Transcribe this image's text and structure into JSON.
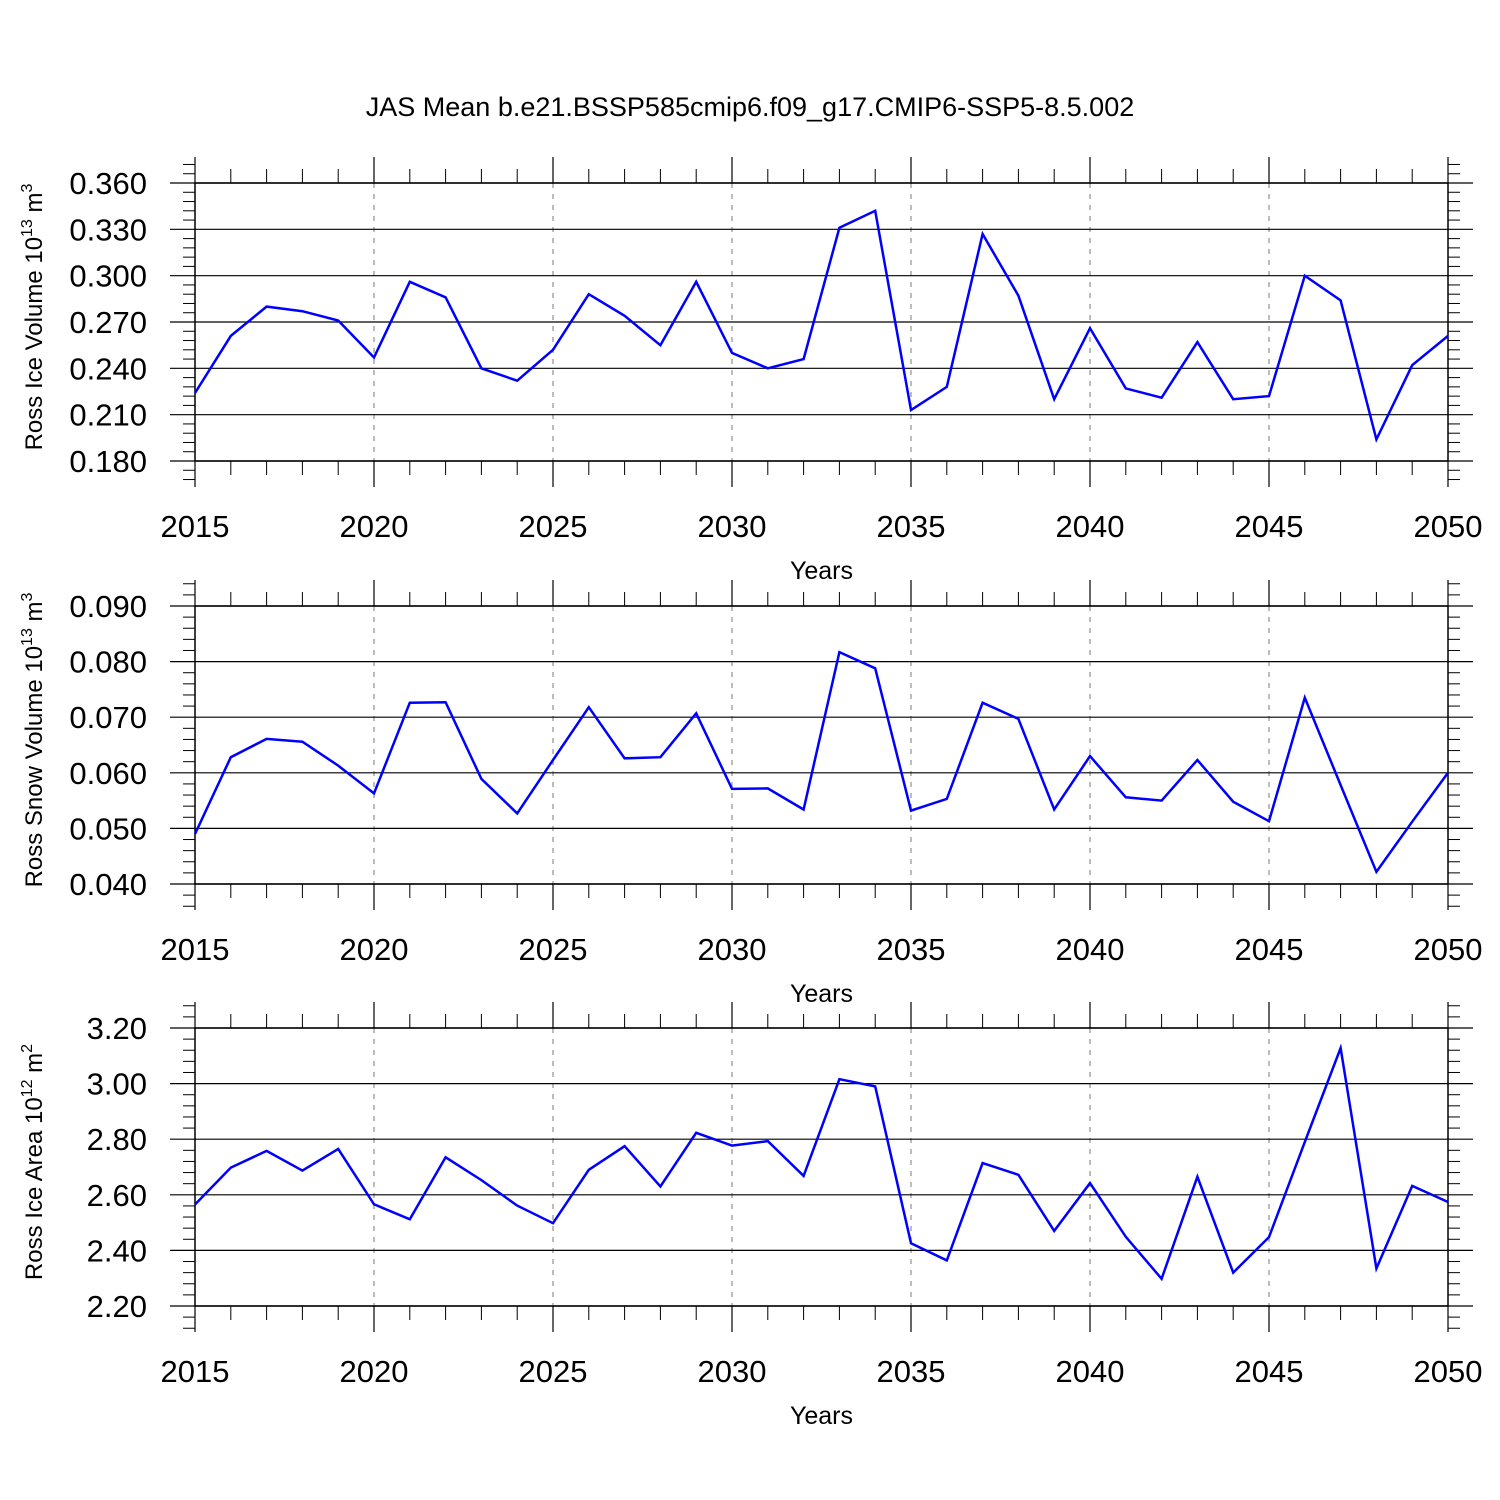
{
  "title": "JAS Mean b.e21.BSSP585cmip6.f09_g17.CMIP6-SSP5-8.5.002",
  "colors": {
    "line": "#0000ff",
    "grid": "#999999"
  },
  "chart_data": [
    {
      "type": "line",
      "ylabel_main": "Ross Ice Volume 10",
      "ylabel_exp": "13",
      "ylabel_unit": " m",
      "ylabel_unit_exp": "3",
      "xlabel": "Years",
      "xlim": [
        2015,
        2050
      ],
      "ylim": [
        0.18,
        0.36
      ],
      "xticks": [
        "2015",
        "2020",
        "2025",
        "2030",
        "2035",
        "2040",
        "2045",
        "2050"
      ],
      "yticks": [
        "0.180",
        "0.210",
        "0.240",
        "0.270",
        "0.300",
        "0.330",
        "0.360"
      ],
      "grid": "vertical dashed at labeled years",
      "x": [
        2015,
        2016,
        2017,
        2018,
        2019,
        2020,
        2021,
        2022,
        2023,
        2024,
        2025,
        2026,
        2027,
        2028,
        2029,
        2030,
        2031,
        2032,
        2033,
        2034,
        2035,
        2036,
        2037,
        2038,
        2039,
        2040,
        2041,
        2042,
        2043,
        2044,
        2045,
        2046,
        2047,
        2048,
        2049,
        2050
      ],
      "values": [
        0.224,
        0.261,
        0.28,
        0.277,
        0.271,
        0.247,
        0.296,
        0.286,
        0.24,
        0.232,
        0.252,
        0.288,
        0.274,
        0.255,
        0.296,
        0.25,
        0.24,
        0.246,
        0.331,
        0.342,
        0.213,
        0.228,
        0.327,
        0.287,
        0.22,
        0.266,
        0.227,
        0.221,
        0.257,
        0.22,
        0.222,
        0.3,
        0.284,
        0.194,
        0.242,
        0.261
      ]
    },
    {
      "type": "line",
      "ylabel_main": "Ross Snow Volume 10",
      "ylabel_exp": "13",
      "ylabel_unit": " m",
      "ylabel_unit_exp": "3",
      "xlabel": "Years",
      "xlim": [
        2015,
        2050
      ],
      "ylim": [
        0.04,
        0.09
      ],
      "xticks": [
        "2015",
        "2020",
        "2025",
        "2030",
        "2035",
        "2040",
        "2045",
        "2050"
      ],
      "yticks": [
        "0.040",
        "0.050",
        "0.060",
        "0.070",
        "0.080",
        "0.090"
      ],
      "grid": "vertical dashed at labeled years",
      "x": [
        2015,
        2016,
        2017,
        2018,
        2019,
        2020,
        2021,
        2022,
        2023,
        2024,
        2025,
        2026,
        2027,
        2028,
        2029,
        2030,
        2031,
        2032,
        2033,
        2034,
        2035,
        2036,
        2037,
        2038,
        2039,
        2040,
        2041,
        2042,
        2043,
        2044,
        2045,
        2046,
        2047,
        2048,
        2049,
        2050
      ],
      "values": [
        0.049,
        0.0628,
        0.0661,
        0.0656,
        0.0613,
        0.0563,
        0.0726,
        0.0727,
        0.0589,
        0.0527,
        0.0623,
        0.0718,
        0.0626,
        0.0628,
        0.0707,
        0.0571,
        0.0572,
        0.0534,
        0.0817,
        0.0788,
        0.0532,
        0.0553,
        0.0726,
        0.0697,
        0.0534,
        0.063,
        0.0556,
        0.055,
        0.0623,
        0.0548,
        0.0513,
        0.0735,
        0.0578,
        0.0422,
        0.0512,
        0.06
      ]
    },
    {
      "type": "line",
      "ylabel_main": "Ross Ice Area 10",
      "ylabel_exp": "12",
      "ylabel_unit": " m",
      "ylabel_unit_exp": "2",
      "xlabel": "Years",
      "xlim": [
        2015,
        2050
      ],
      "ylim": [
        2.2,
        3.2
      ],
      "xticks": [
        "2015",
        "2020",
        "2025",
        "2030",
        "2035",
        "2040",
        "2045",
        "2050"
      ],
      "yticks": [
        "2.20",
        "2.40",
        "2.60",
        "2.80",
        "3.00",
        "3.20"
      ],
      "grid": "vertical dashed at labeled years",
      "x": [
        2015,
        2016,
        2017,
        2018,
        2019,
        2020,
        2021,
        2022,
        2023,
        2024,
        2025,
        2026,
        2027,
        2028,
        2029,
        2030,
        2031,
        2032,
        2033,
        2034,
        2035,
        2036,
        2037,
        2038,
        2039,
        2040,
        2041,
        2042,
        2043,
        2044,
        2045,
        2046,
        2047,
        2048,
        2049,
        2050
      ],
      "values": [
        2.565,
        2.698,
        2.758,
        2.687,
        2.765,
        2.566,
        2.512,
        2.735,
        2.653,
        2.561,
        2.498,
        2.69,
        2.775,
        2.63,
        2.823,
        2.777,
        2.793,
        2.668,
        3.016,
        2.99,
        2.426,
        2.364,
        2.714,
        2.672,
        2.47,
        2.642,
        2.449,
        2.298,
        2.665,
        2.32,
        2.448,
        2.79,
        3.128,
        2.335,
        2.632,
        2.574
      ]
    }
  ]
}
